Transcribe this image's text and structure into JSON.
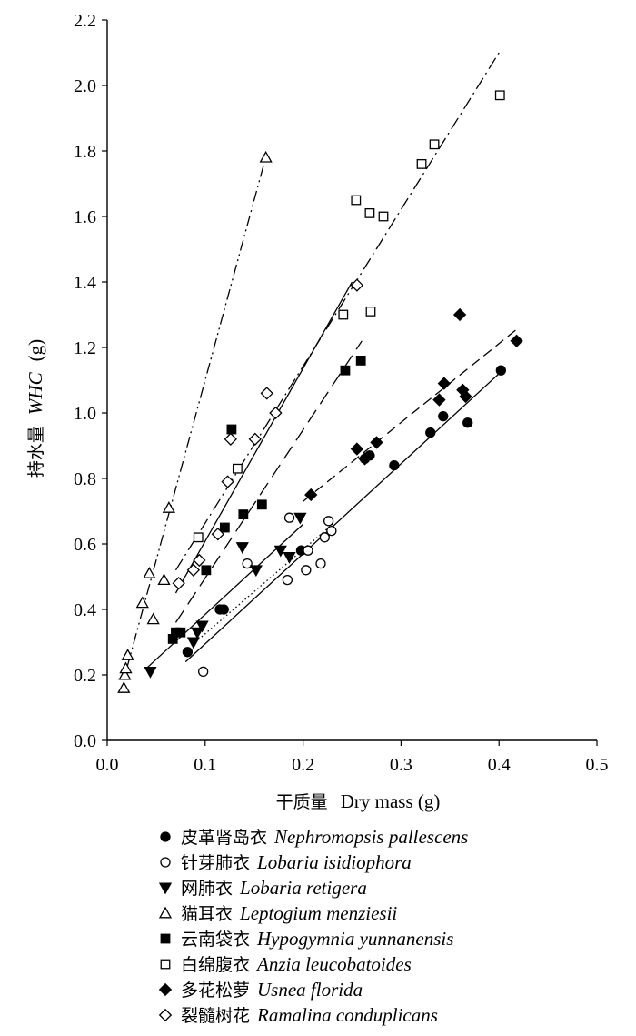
{
  "chart_data": {
    "type": "scatter",
    "xlabel_cn": "干质量",
    "xlabel_en": "Dry mass (g)",
    "ylabel_cn": "持水量",
    "ylabel_var": "WHC",
    "ylabel_unit": "(g)",
    "xlim": [
      0.0,
      0.5
    ],
    "ylim": [
      0.0,
      2.2
    ],
    "xticks": [
      "0.0",
      "0.1",
      "0.2",
      "0.3",
      "0.4",
      "0.5"
    ],
    "yticks": [
      "0.0",
      "0.2",
      "0.4",
      "0.6",
      "0.8",
      "1.0",
      "1.2",
      "1.4",
      "1.6",
      "1.8",
      "2.0",
      "2.2"
    ],
    "grid": false,
    "legend_position": "bottom",
    "series": [
      {
        "name_cn": "皮革肾岛衣",
        "name_sci": "Nephromopsis pallescens",
        "marker": "circle-filled",
        "points": [
          [
            0.082,
            0.27
          ],
          [
            0.115,
            0.4
          ],
          [
            0.119,
            0.4
          ],
          [
            0.198,
            0.58
          ],
          [
            0.263,
            0.86
          ],
          [
            0.268,
            0.87
          ],
          [
            0.293,
            0.84
          ],
          [
            0.33,
            0.94
          ],
          [
            0.343,
            0.99
          ],
          [
            0.368,
            0.97
          ],
          [
            0.402,
            1.13
          ]
        ],
        "fit": {
          "x": [
            0.08,
            0.4
          ],
          "y": [
            0.24,
            1.12
          ],
          "style": "solid"
        }
      },
      {
        "name_cn": "针芽肺衣",
        "name_sci": "Lobaria isidiophora",
        "marker": "circle-open",
        "points": [
          [
            0.098,
            0.21
          ],
          [
            0.143,
            0.54
          ],
          [
            0.184,
            0.49
          ],
          [
            0.186,
            0.68
          ],
          [
            0.203,
            0.52
          ],
          [
            0.205,
            0.58
          ],
          [
            0.218,
            0.54
          ],
          [
            0.222,
            0.62
          ],
          [
            0.226,
            0.67
          ],
          [
            0.229,
            0.64
          ]
        ],
        "fit": {
          "x": [
            0.09,
            0.23
          ],
          "y": [
            0.3,
            0.66
          ],
          "style": "dotted"
        }
      },
      {
        "name_cn": "网肺衣",
        "name_sci": "Lobaria retigera",
        "marker": "triangle-down-filled",
        "points": [
          [
            0.044,
            0.21
          ],
          [
            0.088,
            0.3
          ],
          [
            0.092,
            0.33
          ],
          [
            0.097,
            0.35
          ],
          [
            0.138,
            0.59
          ],
          [
            0.152,
            0.52
          ],
          [
            0.177,
            0.58
          ],
          [
            0.186,
            0.56
          ],
          [
            0.197,
            0.68
          ]
        ],
        "fit": {
          "x": [
            0.04,
            0.2
          ],
          "y": [
            0.22,
            0.66
          ],
          "style": "solid"
        }
      },
      {
        "name_cn": "猫耳衣",
        "name_sci": "Leptogium menziesii",
        "marker": "triangle-up-open",
        "points": [
          [
            0.017,
            0.16
          ],
          [
            0.018,
            0.2
          ],
          [
            0.019,
            0.22
          ],
          [
            0.021,
            0.26
          ],
          [
            0.036,
            0.42
          ],
          [
            0.043,
            0.51
          ],
          [
            0.047,
            0.37
          ],
          [
            0.058,
            0.49
          ],
          [
            0.063,
            0.71
          ],
          [
            0.162,
            1.78
          ]
        ],
        "fit": {
          "x": [
            0.02,
            0.16
          ],
          "y": [
            0.22,
            1.76
          ],
          "style": "dash-dot-dot"
        }
      },
      {
        "name_cn": "云南袋衣",
        "name_sci": "Hypogymnia yunnanensis",
        "marker": "square-filled",
        "points": [
          [
            0.067,
            0.31
          ],
          [
            0.07,
            0.33
          ],
          [
            0.075,
            0.33
          ],
          [
            0.101,
            0.52
          ],
          [
            0.12,
            0.65
          ],
          [
            0.127,
            0.95
          ],
          [
            0.139,
            0.69
          ],
          [
            0.158,
            0.72
          ],
          [
            0.243,
            1.13
          ],
          [
            0.259,
            1.16
          ]
        ],
        "fit": {
          "x": [
            0.07,
            0.26
          ],
          "y": [
            0.36,
            1.22
          ],
          "style": "long-dash"
        }
      },
      {
        "name_cn": "白绵腹衣",
        "name_sci": "Anzia leucobatoides",
        "marker": "square-open",
        "points": [
          [
            0.093,
            0.62
          ],
          [
            0.133,
            0.83
          ],
          [
            0.241,
            1.3
          ],
          [
            0.254,
            1.65
          ],
          [
            0.268,
            1.61
          ],
          [
            0.269,
            1.31
          ],
          [
            0.282,
            1.6
          ],
          [
            0.321,
            1.76
          ],
          [
            0.334,
            1.82
          ],
          [
            0.401,
            1.97
          ]
        ],
        "fit": {
          "x": [
            0.07,
            0.4
          ],
          "y": [
            0.52,
            2.1
          ],
          "style": "dash-dot"
        }
      },
      {
        "name_cn": "多花松萝",
        "name_sci": "Usnea florida",
        "marker": "diamond-filled",
        "points": [
          [
            0.208,
            0.75
          ],
          [
            0.255,
            0.89
          ],
          [
            0.263,
            0.86
          ],
          [
            0.275,
            0.91
          ],
          [
            0.339,
            1.04
          ],
          [
            0.344,
            1.09
          ],
          [
            0.36,
            1.3
          ],
          [
            0.363,
            1.07
          ],
          [
            0.366,
            1.05
          ],
          [
            0.418,
            1.22
          ]
        ],
        "fit": {
          "x": [
            0.2,
            0.42
          ],
          "y": [
            0.73,
            1.26
          ],
          "style": "dashed"
        }
      },
      {
        "name_cn": "裂髓树花",
        "name_sci": "Ramalina conduplicans",
        "marker": "diamond-open",
        "points": [
          [
            0.073,
            0.48
          ],
          [
            0.088,
            0.52
          ],
          [
            0.094,
            0.55
          ],
          [
            0.113,
            0.63
          ],
          [
            0.123,
            0.79
          ],
          [
            0.126,
            0.92
          ],
          [
            0.151,
            0.92
          ],
          [
            0.163,
            1.06
          ],
          [
            0.172,
            1.0
          ],
          [
            0.255,
            1.39
          ]
        ],
        "fit": {
          "x": [
            0.07,
            0.25
          ],
          "y": [
            0.45,
            1.4
          ],
          "style": "solid"
        }
      }
    ]
  }
}
